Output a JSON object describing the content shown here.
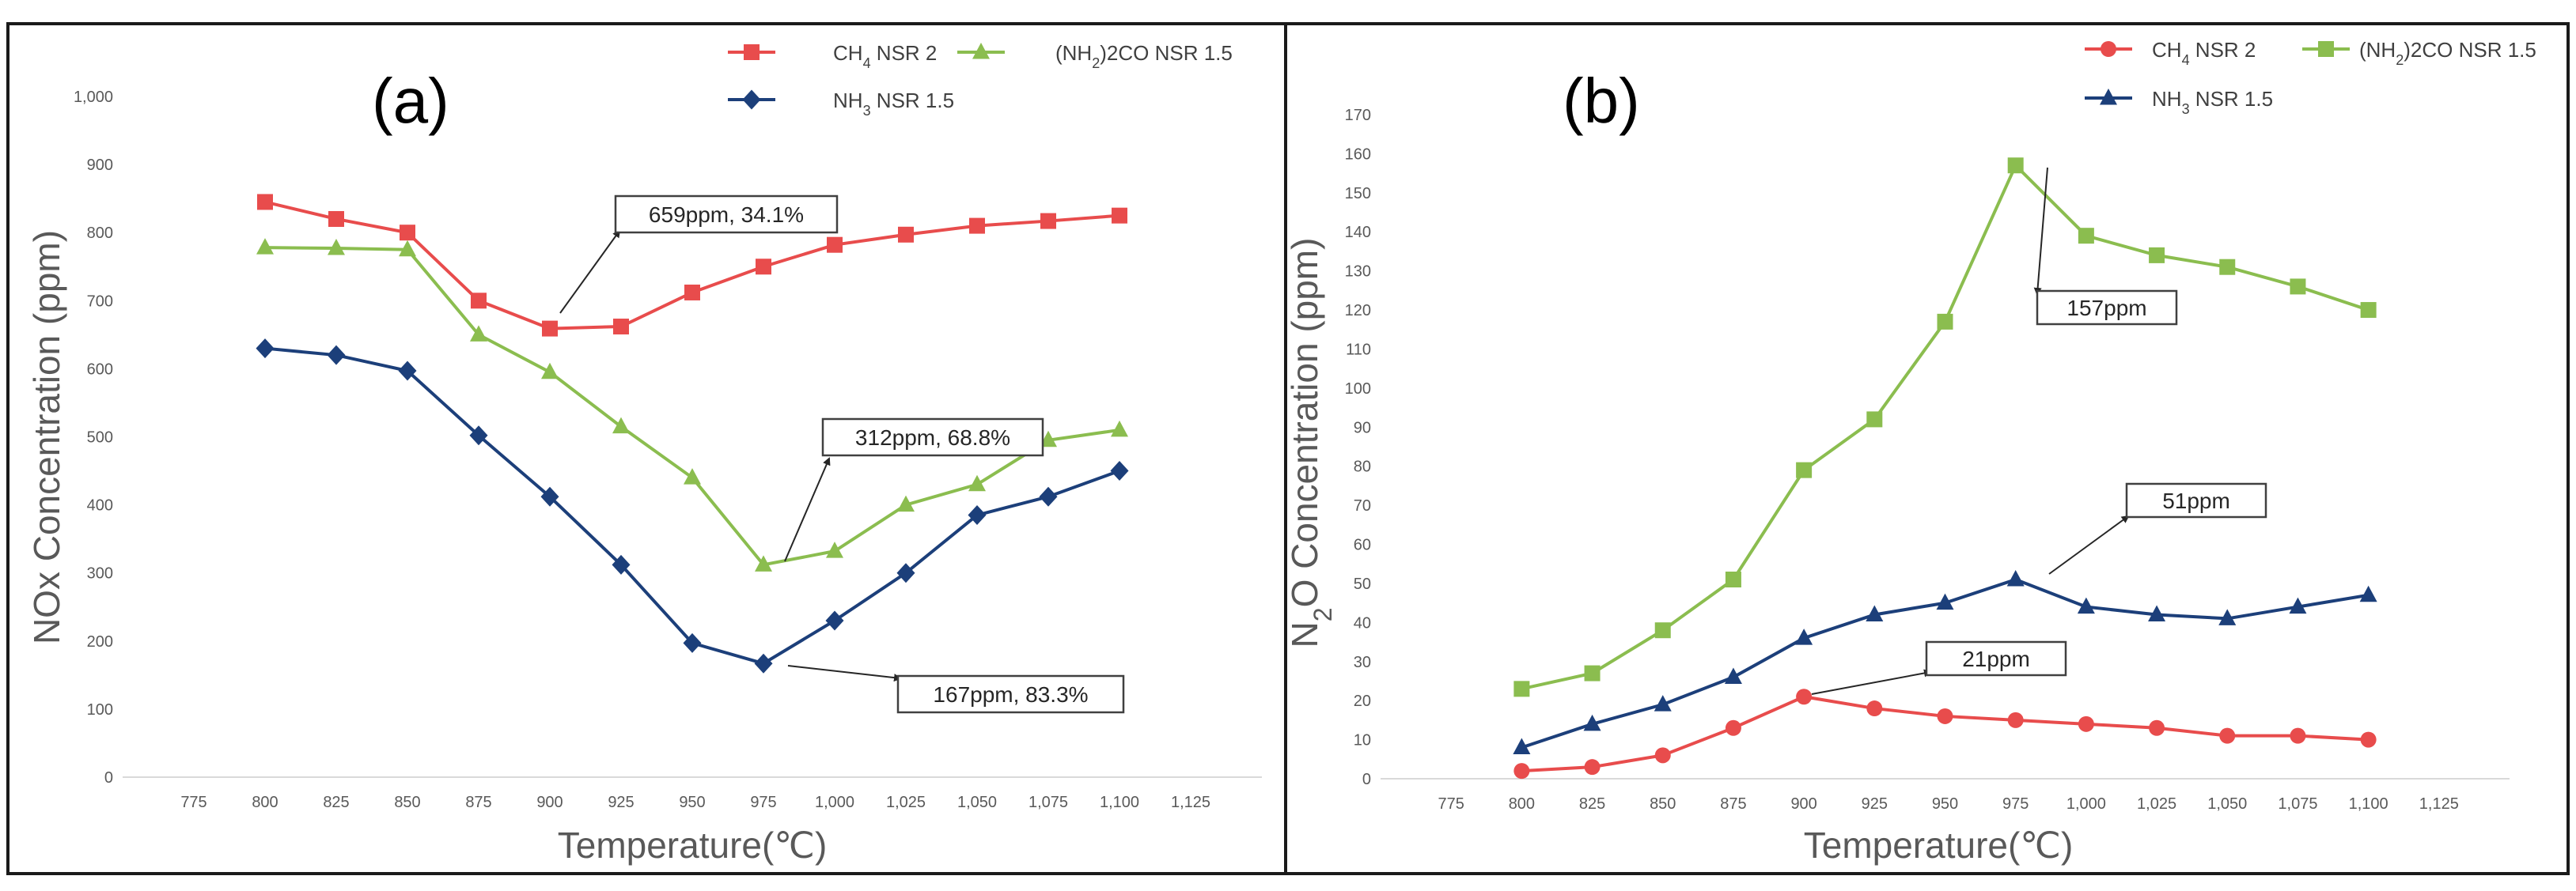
{
  "chart_data": [
    {
      "type": "line",
      "panel_label": "(a)",
      "xlabel": "Temperature(℃)",
      "ylabel": "NOx Concentration (ppm)",
      "xlim": [
        750,
        1150
      ],
      "ylim": [
        0,
        1000
      ],
      "x_ticks": [
        "775",
        "800",
        "825",
        "850",
        "875",
        "900",
        "925",
        "950",
        "975",
        "1,000",
        "1,025",
        "1,050",
        "1,075",
        "1,100",
        "1,125"
      ],
      "y_ticks": [
        "0",
        "100",
        "200",
        "300",
        "400",
        "500",
        "600",
        "700",
        "800",
        "900",
        "1,000"
      ],
      "grid": false,
      "legend_position": "top-right",
      "x": [
        800,
        825,
        850,
        875,
        900,
        925,
        950,
        975,
        1000,
        1025,
        1050,
        1075,
        1100
      ],
      "series": [
        {
          "name": "CH4 NSR 2",
          "name_main": "CH",
          "name_sub": "4",
          "name_rest": " NSR 2",
          "color": "#e84c4c",
          "marker": "square",
          "values": [
            845,
            820,
            800,
            700,
            659,
            662,
            712,
            750,
            782,
            797,
            810,
            817,
            825
          ]
        },
        {
          "name": "(NH2)2CO NSR 1.5",
          "name_main": "(NH",
          "name_sub": "2",
          "name_rest": ")2CO NSR 1.5",
          "color": "#8bbd4f",
          "marker": "triangle",
          "values": [
            778,
            777,
            775,
            650,
            595,
            515,
            440,
            312,
            332,
            400,
            430,
            495,
            510
          ]
        },
        {
          "name": "NH3 NSR 1.5",
          "name_main": "NH",
          "name_sub": "3",
          "name_rest": " NSR 1.5",
          "color": "#1c3f7a",
          "marker": "diamond",
          "values": [
            630,
            620,
            597,
            502,
            412,
            312,
            197,
            167,
            230,
            300,
            385,
            412,
            450
          ]
        }
      ],
      "annotations": [
        {
          "text": "659ppm, 34.1%",
          "x": 900,
          "y": 659
        },
        {
          "text": "312ppm, 68.8%",
          "x": 975,
          "y": 312
        },
        {
          "text": "167ppm, 83.3%",
          "x": 975,
          "y": 167
        }
      ]
    },
    {
      "type": "line",
      "panel_label": "(b)",
      "xlabel": "Temperature(℃)",
      "ylabel_main": "N",
      "ylabel_sub": "2",
      "ylabel_rest": "O Concentration (ppm)",
      "xlim": [
        750,
        1150
      ],
      "ylim": [
        0,
        170
      ],
      "x_ticks": [
        "775",
        "800",
        "825",
        "850",
        "875",
        "900",
        "925",
        "950",
        "975",
        "1,000",
        "1,025",
        "1,050",
        "1,075",
        "1,100",
        "1,125"
      ],
      "y_ticks": [
        "0",
        "10",
        "20",
        "30",
        "40",
        "50",
        "60",
        "70",
        "80",
        "90",
        "100",
        "110",
        "120",
        "130",
        "140",
        "150",
        "160",
        "170"
      ],
      "grid": false,
      "legend_position": "top-right",
      "x": [
        800,
        825,
        850,
        875,
        900,
        925,
        950,
        975,
        1000,
        1025,
        1050,
        1075,
        1100
      ],
      "series": [
        {
          "name": "CH4 NSR 2",
          "name_main": "CH",
          "name_sub": "4",
          "name_rest": " NSR 2",
          "color": "#e84c4c",
          "marker": "circle",
          "values": [
            2,
            3,
            6,
            13,
            21,
            18,
            16,
            15,
            14,
            13,
            11,
            11,
            10
          ]
        },
        {
          "name": "(NH2)2CO NSR 1.5",
          "name_main": "(NH",
          "name_sub": "2",
          "name_rest": ")2CO NSR 1.5",
          "color": "#8bbd4f",
          "marker": "square",
          "values": [
            23,
            27,
            38,
            51,
            79,
            92,
            117,
            157,
            139,
            134,
            131,
            126,
            120
          ]
        },
        {
          "name": "NH3 NSR 1.5",
          "name_main": "NH",
          "name_sub": "3",
          "name_rest": " NSR 1.5",
          "color": "#1c3f7a",
          "marker": "triangle",
          "values": [
            8,
            14,
            19,
            26,
            36,
            42,
            45,
            51,
            44,
            42,
            41,
            44,
            47
          ]
        }
      ],
      "annotations": [
        {
          "text": "157ppm",
          "x": 975,
          "y": 157
        },
        {
          "text": "51ppm",
          "x": 975,
          "y": 51
        },
        {
          "text": "21ppm",
          "x": 900,
          "y": 21
        }
      ]
    }
  ]
}
